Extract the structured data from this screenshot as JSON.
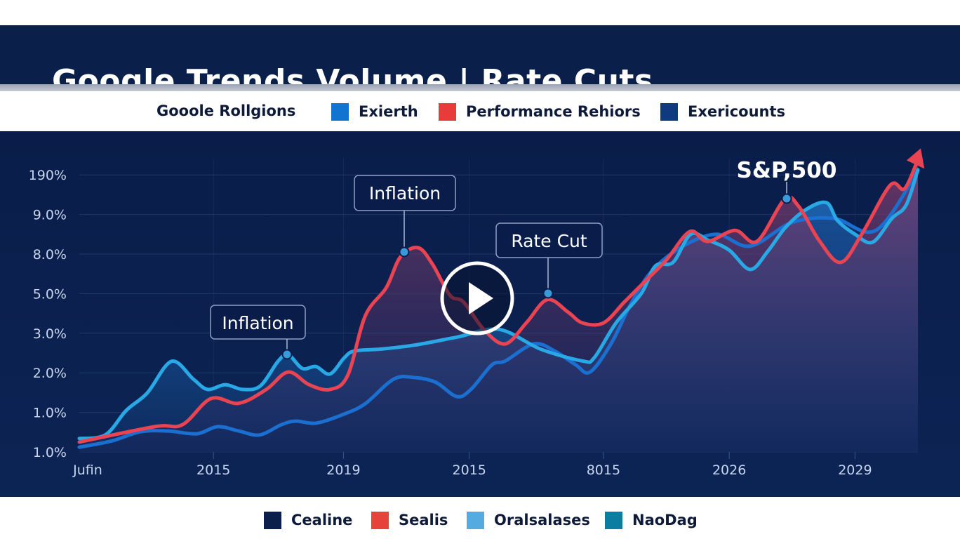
{
  "title": "Google Trends Volume | Rate Cuts",
  "legend_top": {
    "title": "Gooole Rollgions",
    "items": [
      {
        "label": "Exierth",
        "color": "#1274d1"
      },
      {
        "label": "Performance Rehiors",
        "color": "#ea3b3b"
      },
      {
        "label": "Exericounts",
        "color": "#0f3a80"
      }
    ]
  },
  "legend_bottom": {
    "items": [
      {
        "label": "Cealine",
        "color": "#0b1f4b"
      },
      {
        "label": "Sealis",
        "color": "#e8433a"
      },
      {
        "label": "Oralsalases",
        "color": "#55abe0"
      },
      {
        "label": "NaoDag",
        "color": "#0b7da0"
      }
    ]
  },
  "play_button": {
    "icon": "play-icon"
  },
  "chart_data": {
    "type": "area",
    "title": "Google Trends Volume | Rate Cuts",
    "xlabel": "",
    "ylabel": "",
    "grid": true,
    "x_tick_labels": [
      "Jufin",
      "2015",
      "2019",
      "2015",
      "8015",
      "2026",
      "2029"
    ],
    "x_tick_positions": [
      1,
      16,
      31.5,
      46.5,
      62.5,
      77.5,
      92.5
    ],
    "y_tick_labels": [
      "1.0%",
      "1.0%",
      "2.0%",
      "3.0%",
      "5.0%",
      "8.0%",
      "9.0%",
      "190%"
    ],
    "y_tick_positions": [
      0,
      1,
      2,
      3,
      4,
      5,
      6,
      7
    ],
    "xlim": [
      0,
      100
    ],
    "ylim": [
      0,
      7.4
    ],
    "series": [
      {
        "name": "Oralsalases",
        "color": "#29a8e6",
        "fill": "#1c62b0",
        "x": [
          0,
          3.1,
          5.6,
          8.1,
          11,
          13.6,
          15.3,
          17.4,
          19.5,
          21.6,
          23.7,
          24.9,
          26.6,
          28.2,
          29.9,
          31.6,
          32.8,
          36,
          40,
          45,
          50,
          55,
          60,
          61.4,
          64,
          67,
          68.7,
          70.8,
          72.9,
          75,
          77.5,
          80,
          82.1,
          84.2,
          86.7,
          89.1,
          90.4,
          92.5,
          94.6,
          96.9,
          98.6,
          100
        ],
        "y": [
          0.34,
          0.43,
          1.05,
          1.49,
          2.29,
          1.84,
          1.58,
          1.7,
          1.58,
          1.67,
          2.29,
          2.46,
          2.11,
          2.16,
          1.97,
          2.38,
          2.55,
          2.6,
          2.7,
          2.9,
          3.1,
          2.6,
          2.3,
          2.38,
          3.26,
          4.0,
          4.7,
          4.79,
          5.5,
          5.35,
          5.1,
          4.61,
          5.07,
          5.67,
          6.13,
          6.3,
          5.85,
          5.5,
          5.3,
          5.9,
          6.24,
          7.13
        ]
      },
      {
        "name": "Sealis",
        "color": "#ea4452",
        "fill": "#7a3a6a",
        "x": [
          0,
          9,
          12.3,
          15.7,
          19,
          22.3,
          24.9,
          27.4,
          29.9,
          32,
          34.1,
          36.6,
          38.3,
          40.4,
          42.1,
          44.2,
          45.8,
          48.3,
          50.8,
          53.3,
          55.8,
          58.3,
          60,
          62.5,
          65,
          67.5,
          70,
          72.8,
          74.9,
          78.2,
          80.8,
          84.1,
          85.8,
          88.3,
          90.8,
          93.3,
          96.7,
          98.4,
          100
        ],
        "y": [
          0.25,
          0.64,
          0.69,
          1.35,
          1.23,
          1.58,
          2.02,
          1.7,
          1.58,
          1.93,
          3.44,
          4.15,
          4.93,
          5.16,
          4.75,
          3.96,
          3.79,
          3.08,
          2.73,
          3.26,
          3.85,
          3.53,
          3.26,
          3.26,
          3.79,
          4.32,
          4.85,
          5.57,
          5.32,
          5.6,
          5.32,
          6.38,
          6.2,
          5.32,
          4.79,
          5.5,
          6.74,
          6.65,
          7.39
        ]
      },
      {
        "name": "Exericounts",
        "color": "#1a6fd0",
        "fill": "#0e2c63",
        "x": [
          0,
          3.9,
          7.3,
          10.6,
          14,
          16.5,
          19,
          21.5,
          24.1,
          25.8,
          28.3,
          31.6,
          34.1,
          37.5,
          40,
          42.5,
          45,
          46.7,
          49.2,
          50.8,
          54.2,
          56.7,
          59.2,
          60.9,
          63.4,
          65.9,
          68.4,
          72,
          76,
          80,
          85,
          90,
          95,
          100
        ],
        "y": [
          0.12,
          0.28,
          0.51,
          0.53,
          0.46,
          0.64,
          0.53,
          0.43,
          0.69,
          0.78,
          0.73,
          0.96,
          1.22,
          1.84,
          1.88,
          1.76,
          1.4,
          1.58,
          2.2,
          2.3,
          2.73,
          2.55,
          2.2,
          2.02,
          2.73,
          3.79,
          4.6,
          5.2,
          5.5,
          5.2,
          5.8,
          5.9,
          5.6,
          7.1
        ]
      }
    ],
    "annotations": [
      {
        "label": "Inflation",
        "series": "Oralsalases",
        "x": 24.9,
        "y": 2.46
      },
      {
        "label": "Inflation",
        "series": "Sealis",
        "x": 38.8,
        "y": 5.0
      },
      {
        "label": "Rate Cut",
        "series": "Sealis",
        "x": 55.8,
        "y": 4.0
      },
      {
        "label": "S&P,500",
        "series": "Sealis",
        "x": 84.1,
        "y": 6.47
      }
    ]
  }
}
